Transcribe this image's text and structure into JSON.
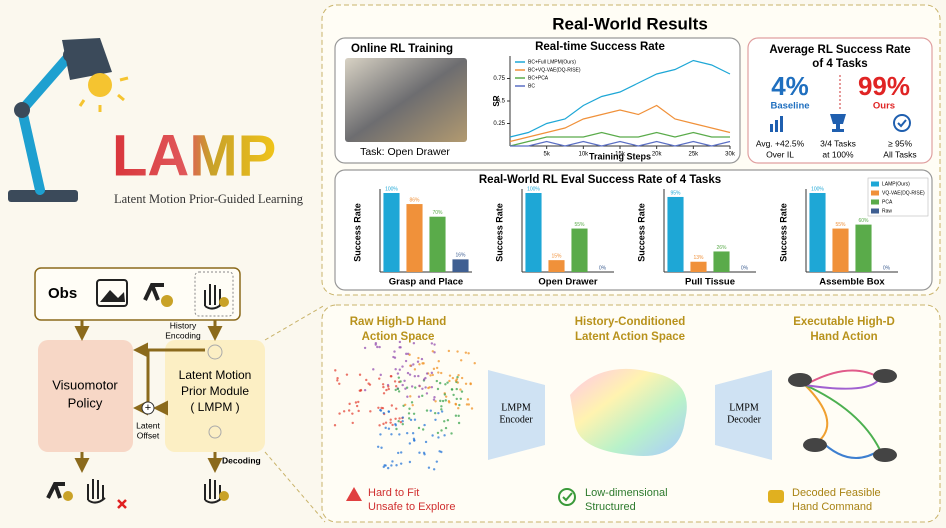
{
  "logo": {
    "title": "LAMP",
    "subtitle": "Latent Motion Prior-Guided Learning"
  },
  "pipeline": {
    "obs": "Obs",
    "history_encoding": [
      "History",
      "Encoding"
    ],
    "policy": [
      "Visuomotor",
      "Policy"
    ],
    "lmpm": [
      "Latent Motion",
      "Prior Module",
      "( LMPM )"
    ],
    "latent_offset": [
      "Latent",
      "Offset"
    ],
    "decoding": "Decoding"
  },
  "results": {
    "title": "Real-World Results",
    "online": {
      "title": "Online RL Training",
      "caption": "Task: Open Drawer"
    },
    "line_chart": {
      "type": "line",
      "title": "Real-time Success Rate",
      "x_label": "Training Steps",
      "y_label": "SR",
      "x": [
        0,
        2500,
        5000,
        7500,
        10000,
        12500,
        15000,
        17500,
        20000,
        22500,
        25000,
        27500,
        30000
      ],
      "series": [
        {
          "name": "BC+Full LMPM(Ours)",
          "color": "#1ea7d6",
          "values": [
            0.1,
            0.15,
            0.25,
            0.3,
            0.45,
            0.55,
            0.6,
            0.7,
            0.8,
            0.85,
            0.95,
            0.9,
            0.8
          ]
        },
        {
          "name": "BC+VQ-VAE(DQ-RISE)",
          "color": "#f0913a",
          "values": [
            0.05,
            0.1,
            0.15,
            0.2,
            0.3,
            0.35,
            0.4,
            0.35,
            0.45,
            0.3,
            0.25,
            0.2,
            0.15
          ]
        },
        {
          "name": "BC+PCA",
          "color": "#5aab4a",
          "values": [
            0,
            0.05,
            0.1,
            0.1,
            0.1,
            0.15,
            0.1,
            0.1,
            0.15,
            0.1,
            0.15,
            0.1,
            0.1
          ]
        },
        {
          "name": "BC",
          "color": "#5b6fc4",
          "values": [
            0,
            0,
            0.05,
            0,
            0.05,
            0,
            0.05,
            0,
            0.05,
            0,
            0.05,
            0,
            0.05
          ]
        }
      ],
      "xlim": [
        0,
        30000
      ],
      "ylim": [
        0,
        1
      ],
      "xticks": [
        {
          "value": 5000,
          "label": "5k"
        },
        {
          "value": 10000,
          "label": "10k"
        },
        {
          "value": 15000,
          "label": "15k"
        },
        {
          "value": 20000,
          "label": "20k"
        },
        {
          "value": 25000,
          "label": "25k"
        },
        {
          "value": 30000,
          "label": "30k"
        }
      ],
      "yticks": [
        0.25,
        0.5,
        0.75
      ]
    },
    "average": {
      "title": [
        "Average RL Success Rate",
        "of 4 Tasks"
      ],
      "baseline_value": "4%",
      "baseline_label": "Baseline",
      "ours_value": "99%",
      "ours_label": "Ours",
      "stats": [
        [
          "Avg. +42.5%",
          "Over IL"
        ],
        [
          "3/4 Tasks",
          "at 100%"
        ],
        [
          "≥ 95%",
          "All Tasks"
        ]
      ]
    },
    "eval": {
      "title": "Real-World RL Eval Success Rate of 4 Tasks",
      "y_label": "Success Rate",
      "ylim": [
        0,
        100
      ],
      "series": [
        {
          "name": "LAMP(Ours)",
          "color": "#1ea7d6"
        },
        {
          "name": "VQ-VAE(DQ-RISE)",
          "color": "#f0913a"
        },
        {
          "name": "PCA",
          "color": "#5aab4a"
        },
        {
          "name": "Raw",
          "color": "#3f5f92"
        }
      ],
      "charts": [
        {
          "type": "bar",
          "task": "Grasp and Place",
          "values": [
            100,
            86,
            70,
            16
          ],
          "value_labels": [
            "100%",
            "86%",
            "70%",
            "16%"
          ]
        },
        {
          "type": "bar",
          "task": "Open Drawer",
          "values": [
            100,
            15,
            55,
            0
          ],
          "value_labels": [
            "100%",
            "15%",
            "55%",
            "0%"
          ]
        },
        {
          "type": "bar",
          "task": "Pull Tissue",
          "values": [
            95,
            13,
            26,
            0
          ],
          "value_labels": [
            "95%",
            "13%",
            "26%",
            "0%"
          ]
        },
        {
          "type": "bar",
          "task": "Assemble Box",
          "values": [
            100,
            55,
            60,
            0
          ],
          "value_labels": [
            "100%",
            "55%",
            "60%",
            "0%"
          ]
        }
      ]
    }
  },
  "bottom": {
    "columns": [
      {
        "title": [
          "Raw High-D Hand",
          "Action Space"
        ],
        "notes": [
          "Hard to Fit",
          "Unsafe to Explore"
        ]
      },
      {
        "title": [
          "History-Conditioned",
          "Latent Action Space"
        ],
        "notes": [
          "Low-dimensional",
          "Structured"
        ]
      },
      {
        "title": [
          "Executable High-D",
          "Hand Action"
        ],
        "notes": [
          "Decoded Feasible",
          "Hand Command"
        ]
      }
    ],
    "encoder": [
      "LMPM",
      "Encoder"
    ],
    "decoder": [
      "LMPM",
      "Decoder"
    ]
  }
}
